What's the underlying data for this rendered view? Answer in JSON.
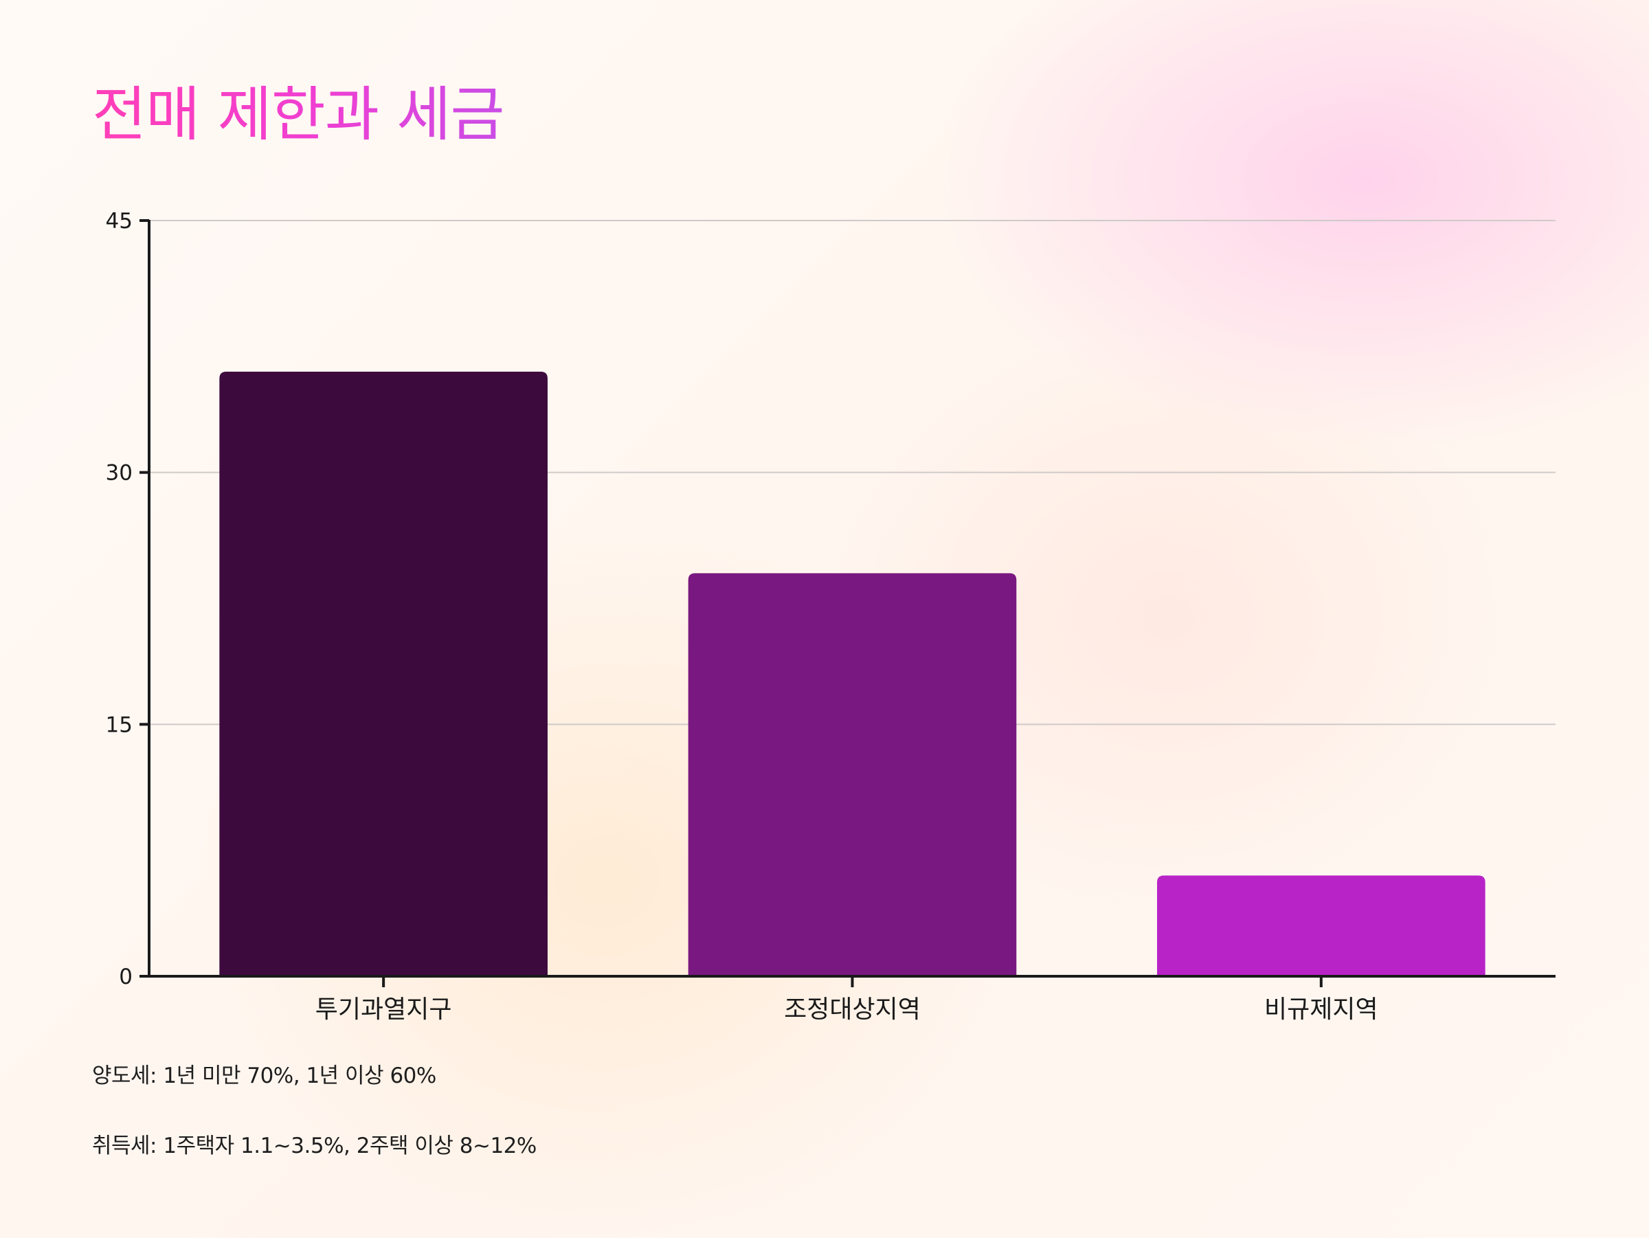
{
  "title": "전매 제한과 세금",
  "chart_data": {
    "type": "bar",
    "categories": [
      "투기과열지구",
      "조정대상지역",
      "비규제지역"
    ],
    "values": [
      36,
      24,
      6
    ],
    "ylim": [
      0,
      45
    ],
    "yticks": [
      0,
      15,
      30,
      45
    ],
    "grid": true,
    "colors": [
      "#3d0a3e",
      "#7a1881",
      "#b823c8"
    ],
    "xlabel": "",
    "ylabel": ""
  },
  "notes": [
    "양도세: 1년 미만 70%, 1년 이상 60%",
    "취득세: 1주택자 1.1~3.5%, 2주택 이상 8~12%"
  ]
}
